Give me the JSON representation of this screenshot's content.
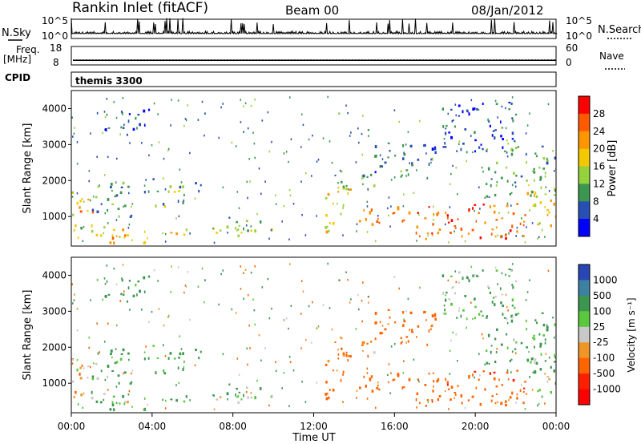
{
  "chart_data": {
    "type": "heatmap",
    "title": "Rankin Inlet (fitACF)",
    "beam": "Beam 00",
    "date": "08/Jan/2012",
    "xlabel": "Time UT",
    "x_ticks": [
      "00:00",
      "04:00",
      "08:00",
      "12:00",
      "16:00",
      "20:00",
      "00:00"
    ],
    "x_range_hours": [
      0,
      24
    ],
    "status_panels": {
      "nsky": {
        "left_label": "N.Sky",
        "right_label": "N.Search",
        "left_ticks": [
          "10^5",
          "10^0"
        ],
        "right_ticks": [
          "10^5",
          "10^0"
        ]
      },
      "freq": {
        "left_label_line1": "Freq.",
        "left_label_line2": "[MHz]",
        "right_label": "Nave",
        "left_ticks": [
          "18",
          "8"
        ],
        "right_ticks": [
          "60",
          "0"
        ],
        "freq_mhz": 10.5,
        "nave": 16
      },
      "cpid": {
        "label": "CPID",
        "program": "themis 3300"
      }
    },
    "panels": [
      {
        "name": "power",
        "ylabel": "Slant Range [km]",
        "ylim": [
          180,
          4500
        ],
        "y_ticks": [
          1000,
          2000,
          3000,
          4000
        ],
        "colorbar_label": "Power [dB]",
        "colorbar_ticks": [
          "28",
          "24",
          "20",
          "16",
          "12",
          "8",
          "4"
        ],
        "colorbar_colors": [
          "#ff0000",
          "#ff5a00",
          "#ff9600",
          "#f2c800",
          "#96d23c",
          "#3c9650",
          "#2850b4",
          "#0000ff"
        ]
      },
      {
        "name": "velocity",
        "ylabel": "Slant Range [km]",
        "ylim": [
          180,
          4500
        ],
        "y_ticks": [
          1000,
          2000,
          3000,
          4000
        ],
        "colorbar_label": "Velocity [m s⁻¹]",
        "colorbar_ticks": [
          "1000",
          "500",
          "100",
          "25",
          "-25",
          "-100",
          "-500",
          "-1000"
        ],
        "colorbar_colors": [
          "#2846b4",
          "#3c82a0",
          "#3c9650",
          "#5ac83c",
          "#c8c8c8",
          "#f09628",
          "#ff6400",
          "#ff1e00",
          "#ff0000"
        ]
      }
    ],
    "echo_regions": [
      {
        "t": [
          0.0,
          0.6
        ],
        "r": [
          600,
          1900
        ],
        "p": 14,
        "v": -50
      },
      {
        "t": [
          0.2,
          1.5
        ],
        "r": [
          1100,
          1500
        ],
        "p": 22,
        "v": -30
      },
      {
        "t": [
          0.3,
          2.2
        ],
        "r": [
          300,
          800
        ],
        "p": 16,
        "v": 60
      },
      {
        "t": [
          2.0,
          6.0
        ],
        "r": [
          300,
          700
        ],
        "p": 20,
        "v": 90
      },
      {
        "t": [
          1.0,
          3.2
        ],
        "r": [
          1000,
          2000
        ],
        "p": 10,
        "v": 120
      },
      {
        "t": [
          3.6,
          5.6
        ],
        "r": [
          1300,
          2100
        ],
        "p": 12,
        "v": 150
      },
      {
        "t": [
          5.3,
          6.4
        ],
        "r": [
          1700,
          2000
        ],
        "p": 8,
        "v": 200
      },
      {
        "t": [
          6.8,
          10.2
        ],
        "r": [
          400,
          800
        ],
        "p": 14,
        "v": 80
      },
      {
        "t": [
          7.5,
          9.5
        ],
        "r": [
          800,
          1000
        ],
        "p": 10,
        "v": 120
      },
      {
        "t": [
          1.2,
          3.8
        ],
        "r": [
          3300,
          4000
        ],
        "p": 6,
        "v": 200
      },
      {
        "t": [
          12.5,
          13.8
        ],
        "r": [
          600,
          1800
        ],
        "p": 18,
        "v": -200
      },
      {
        "t": [
          13.0,
          15.0
        ],
        "r": [
          1700,
          2300
        ],
        "p": 12,
        "v": -150
      },
      {
        "t": [
          14.0,
          17.0
        ],
        "r": [
          800,
          1300
        ],
        "p": 24,
        "v": -300
      },
      {
        "t": [
          15.0,
          18.0
        ],
        "r": [
          2100,
          3100
        ],
        "p": 8,
        "v": -200
      },
      {
        "t": [
          17.0,
          22.5
        ],
        "r": [
          400,
          1400
        ],
        "p": 26,
        "v": -400
      },
      {
        "t": [
          22.5,
          24.0
        ],
        "r": [
          500,
          1900
        ],
        "p": 18,
        "v": 60
      },
      {
        "t": [
          20.5,
          24.0
        ],
        "r": [
          1500,
          3000
        ],
        "p": 10,
        "v": 150
      },
      {
        "t": [
          18.0,
          22.0
        ],
        "r": [
          2800,
          4200
        ],
        "p": 6,
        "v": 100
      }
    ]
  }
}
